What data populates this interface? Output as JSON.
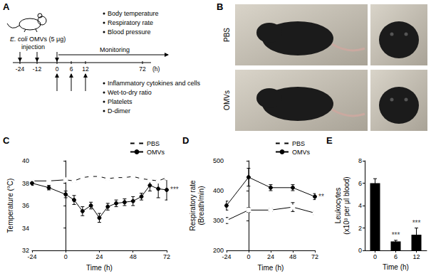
{
  "panel_labels": [
    "A",
    "B",
    "C",
    "D",
    "E"
  ],
  "diagram": {
    "subject": {
      "organism": "E. coli",
      "label": "OMVs (5 μg)"
    },
    "action": "injection",
    "timeline": {
      "ticks": [
        -24,
        -12,
        0,
        6,
        12,
        72
      ],
      "unit": "(h)",
      "injections": [
        -24,
        -12,
        0
      ],
      "samplings": [
        0,
        6,
        12
      ]
    },
    "monitoring": {
      "label": "Monitoring",
      "from": 0
    },
    "monitored": [
      "Body temperature",
      "Respiratory rate",
      "Blood pressure"
    ],
    "sampled": [
      "Inflammatory cytokines and cells",
      "Wet-to-dry ratio",
      "Platelets",
      "D-dimer"
    ]
  },
  "photos": {
    "rows": [
      "PBS",
      "OMVs"
    ]
  },
  "chart_data": [
    {
      "type": "line",
      "xlabel": "Time (h)",
      "ylabel": "Temperature (°C)",
      "x": [
        -24,
        -12,
        0,
        6,
        12,
        18,
        24,
        30,
        36,
        42,
        48,
        54,
        60,
        66,
        72
      ],
      "xlim": [
        -24,
        72
      ],
      "xticks": [
        -24,
        0,
        24,
        48,
        72
      ],
      "ylim": [
        32,
        40
      ],
      "yticks": [
        32,
        34,
        36,
        38,
        40
      ],
      "grid": false,
      "legend": "top-right",
      "series": [
        {
          "name": "PBS",
          "color": "#000000",
          "marker": "open_circle",
          "line_style": "solid",
          "values": [
            38.2,
            38.2,
            38.3,
            38.2,
            38.5,
            38.6,
            38.6,
            38.4,
            38.5,
            38.5,
            38.6,
            38.4,
            38.3,
            38.2,
            38.5
          ],
          "errors": [
            0.1,
            0.1,
            0.1,
            0.1,
            0.1,
            0.1,
            0.1,
            0.1,
            0.1,
            0.1,
            0.1,
            0.1,
            0.1,
            0.1,
            0.1
          ]
        },
        {
          "name": "OMVs",
          "color": "#000000",
          "marker": "circle",
          "line_style": "solid",
          "values": [
            38.0,
            37.6,
            37.0,
            36.5,
            35.5,
            36.0,
            34.9,
            35.9,
            36.2,
            36.3,
            36.4,
            36.8,
            37.8,
            37.5,
            37.4
          ],
          "errors": [
            0.2,
            0.2,
            0.3,
            0.4,
            0.4,
            0.3,
            0.4,
            0.3,
            0.3,
            0.3,
            0.4,
            0.3,
            0.5,
            0.8,
            0.9
          ]
        }
      ],
      "annotations": [
        {
          "text": "***",
          "series": "OMVs"
        }
      ]
    },
    {
      "type": "line",
      "xlabel": "Time (h)",
      "ylabel": "Respiratory rate\n(Breath/min)",
      "x": [
        -24,
        0,
        24,
        48,
        72
      ],
      "xlim": [
        -24,
        72
      ],
      "xticks": [
        -24,
        0,
        24,
        48,
        72
      ],
      "ylim": [
        200,
        500
      ],
      "yticks": [
        200,
        300,
        400,
        500
      ],
      "grid": false,
      "legend": "top-right",
      "series": [
        {
          "name": "PBS",
          "color": "#000000",
          "marker": "open_circle",
          "line_style": "solid",
          "values": [
            300,
            335,
            335,
            345,
            325
          ],
          "errors": [
            10,
            8,
            5,
            15,
            5
          ]
        },
        {
          "name": "OMVs",
          "color": "#000000",
          "marker": "circle",
          "line_style": "solid",
          "values": [
            350,
            445,
            410,
            410,
            380
          ],
          "errors": [
            15,
            30,
            10,
            10,
            10
          ]
        }
      ],
      "annotations": [
        {
          "text": "**",
          "series": "OMVs"
        }
      ]
    },
    {
      "type": "bar",
      "xlabel": "Time (h)",
      "ylabel": "Leukocytes\n(x10³ per μl blood)",
      "categories": [
        "0",
        "6",
        "12"
      ],
      "values": [
        6.0,
        0.8,
        1.4
      ],
      "errors": [
        0.4,
        0.1,
        0.6
      ],
      "color": "#000000",
      "ylim": [
        0,
        8
      ],
      "yticks": [
        0,
        2,
        4,
        6,
        8
      ],
      "grid": false,
      "annotations": [
        {
          "category": "6",
          "text": "***"
        },
        {
          "category": "12",
          "text": "***"
        }
      ]
    }
  ]
}
